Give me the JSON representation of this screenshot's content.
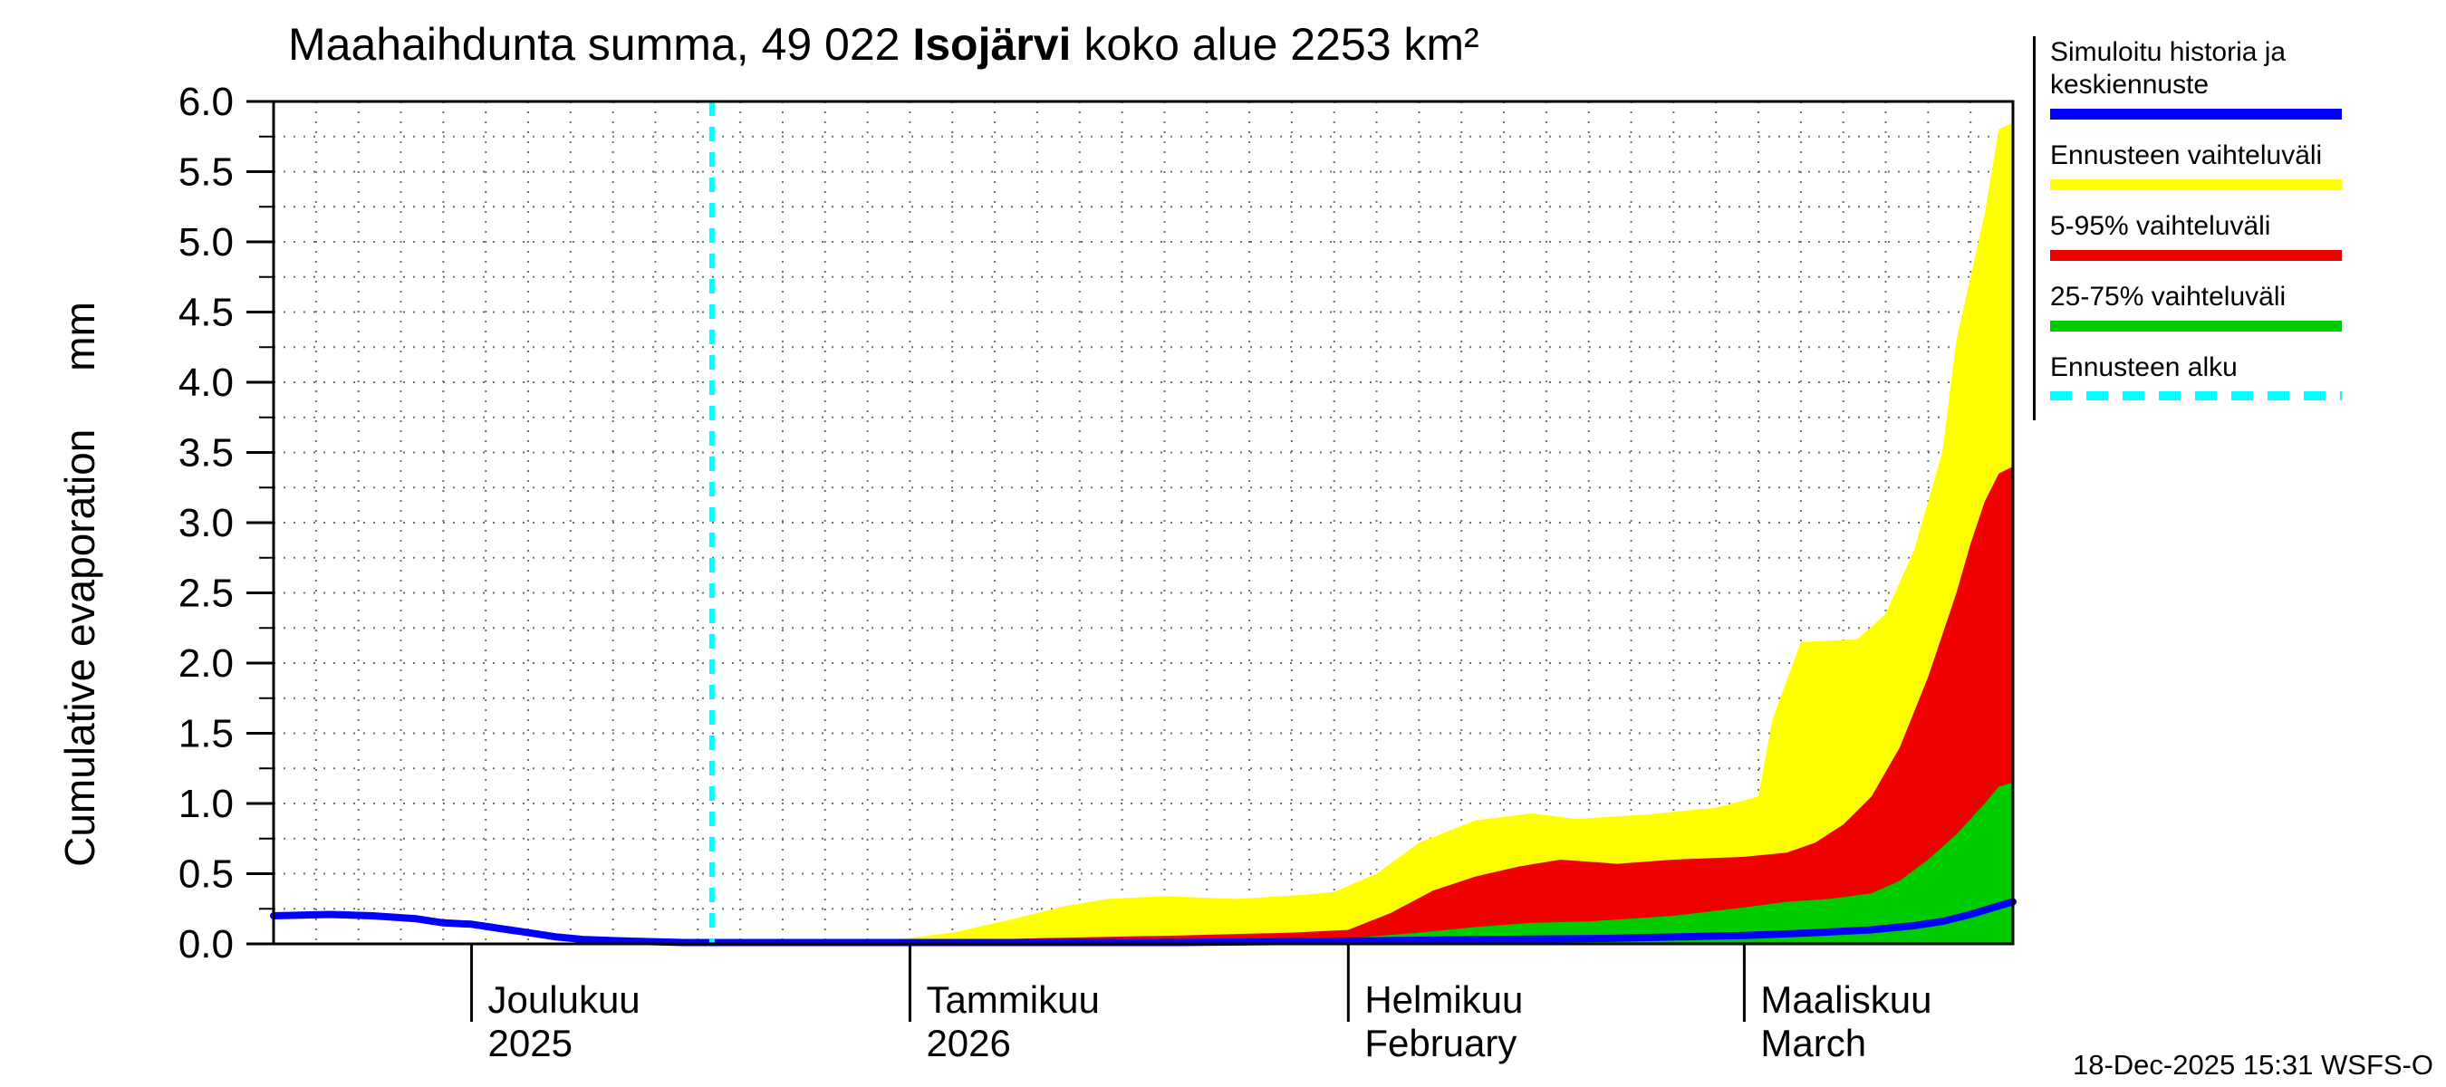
{
  "title": {
    "prefix": "Maahaihdunta summa, 49 022 ",
    "station": "Isojärvi",
    "suffix": " koko alue 2253 km²"
  },
  "ylabel": "Cumulative evaporation     mm",
  "timestamp": "18-Dec-2025 15:31 WSFS-O",
  "legend": {
    "items": [
      {
        "key": "simuloitu-historia",
        "label": "Simuloitu historia ja keskiennuste",
        "color": "#0000ff",
        "style": "solid"
      },
      {
        "key": "ennusteen-vaihteluvali",
        "label": "Ennusteen vaihteluväli",
        "color": "#ffff00",
        "style": "solid"
      },
      {
        "key": "5-95-vaihteluvali",
        "label": "5-95% vaihteluväli",
        "color": "#ee0000",
        "style": "solid"
      },
      {
        "key": "25-75-vaihteluvali",
        "label": "25-75% vaihteluväli",
        "color": "#00cc00",
        "style": "solid"
      },
      {
        "key": "ennusteen-alku",
        "label": "Ennusteen alku",
        "color": "#00ffff",
        "style": "dashed"
      }
    ]
  },
  "chart_data": {
    "type": "area",
    "title": "Maahaihdunta summa, 49 022 Isojärvi koko alue 2253 km²",
    "ylabel": "Cumulative evaporation (mm)",
    "ylim": [
      0,
      6
    ],
    "ytick_step": 0.5,
    "grid": true,
    "legend_position": "right",
    "x_domain": [
      "2025-11-17",
      "2026-03-20"
    ],
    "forecast_start": "2025-12-18",
    "forecast_color": "#00ffff",
    "months": [
      {
        "date": "2025-12-01",
        "line1": "Joulukuu",
        "line2": "2025"
      },
      {
        "date": "2026-01-01",
        "line1": "Tammikuu",
        "line2": "2026"
      },
      {
        "date": "2026-02-01",
        "line1": "Helmikuu",
        "line2": "February"
      },
      {
        "date": "2026-03-01",
        "line1": "Maaliskuu",
        "line2": "March"
      }
    ],
    "series": [
      {
        "key": "ennusteen-vaihteluvali",
        "name": "Ennusteen vaihteluväli",
        "kind": "band",
        "color": "#ffff00",
        "points": [
          [
            "2025-12-18",
            0
          ],
          [
            "2025-12-24",
            0.01
          ],
          [
            "2025-12-31",
            0.03
          ],
          [
            "2026-01-04",
            0.08
          ],
          [
            "2026-01-08",
            0.17
          ],
          [
            "2026-01-12",
            0.27
          ],
          [
            "2026-01-15",
            0.32
          ],
          [
            "2026-01-19",
            0.34
          ],
          [
            "2026-01-24",
            0.32
          ],
          [
            "2026-01-29",
            0.35
          ],
          [
            "2026-01-31",
            0.37
          ],
          [
            "2026-02-03",
            0.5
          ],
          [
            "2026-02-06",
            0.72
          ],
          [
            "2026-02-10",
            0.88
          ],
          [
            "2026-02-14",
            0.93
          ],
          [
            "2026-02-17",
            0.89
          ],
          [
            "2026-02-22",
            0.92
          ],
          [
            "2026-02-27",
            0.97
          ],
          [
            "2026-03-02",
            1.05
          ],
          [
            "2026-03-03",
            1.6
          ],
          [
            "2026-03-05",
            2.15
          ],
          [
            "2026-03-09",
            2.17
          ],
          [
            "2026-03-11",
            2.35
          ],
          [
            "2026-03-13",
            2.8
          ],
          [
            "2026-03-15",
            3.5
          ],
          [
            "2026-03-16",
            4.3
          ],
          [
            "2026-03-18",
            5.2
          ],
          [
            "2026-03-19",
            5.8
          ],
          [
            "2026-03-20",
            5.85
          ]
        ]
      },
      {
        "key": "5-95-vaihteluvali",
        "name": "5-95% vaihteluväli",
        "kind": "band",
        "color": "#ee0000",
        "points": [
          [
            "2025-12-18",
            0
          ],
          [
            "2026-01-01",
            0.02
          ],
          [
            "2026-01-10",
            0.04
          ],
          [
            "2026-01-20",
            0.06
          ],
          [
            "2026-01-28",
            0.08
          ],
          [
            "2026-02-01",
            0.1
          ],
          [
            "2026-02-04",
            0.22
          ],
          [
            "2026-02-07",
            0.38
          ],
          [
            "2026-02-10",
            0.48
          ],
          [
            "2026-02-13",
            0.55
          ],
          [
            "2026-02-16",
            0.6
          ],
          [
            "2026-02-20",
            0.57
          ],
          [
            "2026-02-24",
            0.6
          ],
          [
            "2026-03-01",
            0.62
          ],
          [
            "2026-03-04",
            0.65
          ],
          [
            "2026-03-06",
            0.72
          ],
          [
            "2026-03-08",
            0.85
          ],
          [
            "2026-03-10",
            1.05
          ],
          [
            "2026-03-12",
            1.4
          ],
          [
            "2026-03-14",
            1.9
          ],
          [
            "2026-03-16",
            2.5
          ],
          [
            "2026-03-17",
            2.85
          ],
          [
            "2026-03-18",
            3.15
          ],
          [
            "2026-03-19",
            3.35
          ],
          [
            "2026-03-20",
            3.4
          ]
        ]
      },
      {
        "key": "25-75-vaihteluvali",
        "name": "25-75% vaihteluväli",
        "kind": "band",
        "color": "#00cc00",
        "points": [
          [
            "2025-12-18",
            0
          ],
          [
            "2026-01-10",
            0.01
          ],
          [
            "2026-02-01",
            0.04
          ],
          [
            "2026-02-06",
            0.08
          ],
          [
            "2026-02-10",
            0.12
          ],
          [
            "2026-02-14",
            0.15
          ],
          [
            "2026-02-18",
            0.16
          ],
          [
            "2026-02-24",
            0.2
          ],
          [
            "2026-03-01",
            0.26
          ],
          [
            "2026-03-04",
            0.3
          ],
          [
            "2026-03-07",
            0.32
          ],
          [
            "2026-03-10",
            0.36
          ],
          [
            "2026-03-12",
            0.45
          ],
          [
            "2026-03-14",
            0.6
          ],
          [
            "2026-03-16",
            0.78
          ],
          [
            "2026-03-18",
            1.0
          ],
          [
            "2026-03-19",
            1.12
          ],
          [
            "2026-03-20",
            1.15
          ]
        ]
      },
      {
        "key": "simuloitu-historia",
        "name": "Simuloitu historia ja keskiennuste",
        "kind": "line",
        "color": "#0000ff",
        "points": [
          [
            "2025-11-17",
            0.2
          ],
          [
            "2025-11-21",
            0.21
          ],
          [
            "2025-11-24",
            0.2
          ],
          [
            "2025-11-27",
            0.18
          ],
          [
            "2025-11-29",
            0.15
          ],
          [
            "2025-12-01",
            0.14
          ],
          [
            "2025-12-03",
            0.11
          ],
          [
            "2025-12-05",
            0.08
          ],
          [
            "2025-12-07",
            0.05
          ],
          [
            "2025-12-09",
            0.03
          ],
          [
            "2025-12-12",
            0.02
          ],
          [
            "2025-12-16",
            0.01
          ],
          [
            "2026-01-01",
            0.01
          ],
          [
            "2026-01-20",
            0.01
          ],
          [
            "2026-02-01",
            0.02
          ],
          [
            "2026-02-10",
            0.03
          ],
          [
            "2026-02-20",
            0.04
          ],
          [
            "2026-03-01",
            0.06
          ],
          [
            "2026-03-06",
            0.08
          ],
          [
            "2026-03-10",
            0.1
          ],
          [
            "2026-03-13",
            0.13
          ],
          [
            "2026-03-15",
            0.16
          ],
          [
            "2026-03-17",
            0.21
          ],
          [
            "2026-03-19",
            0.27
          ],
          [
            "2026-03-20",
            0.3
          ]
        ]
      }
    ]
  }
}
